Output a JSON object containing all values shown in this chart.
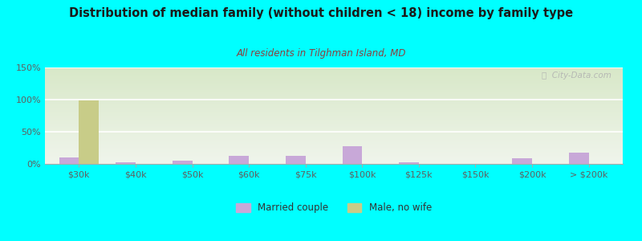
{
  "title": "Distribution of median family (without children < 18) income by family type",
  "subtitle": "All residents in Tilghman Island, MD",
  "categories": [
    "$30k",
    "$40k",
    "$50k",
    "$60k",
    "$75k",
    "$100k",
    "$125k",
    "$150k",
    "$200k",
    "> $200k"
  ],
  "married_couple": [
    10,
    3,
    5,
    12,
    13,
    27,
    2,
    0,
    9,
    17
  ],
  "male_no_wife": [
    99,
    0,
    0,
    0,
    0,
    0,
    0,
    0,
    0,
    0
  ],
  "married_color": "#c8a8d8",
  "male_color": "#c8cc88",
  "bg_color": "#00ffff",
  "plot_bg_top": "#d8e8c8",
  "plot_bg_bottom": "#f0f5ec",
  "title_color": "#1a1a1a",
  "subtitle_color": "#8b4040",
  "watermark": "ⓘ  City-Data.com",
  "ylim": [
    0,
    150
  ],
  "yticks": [
    0,
    50,
    100,
    150
  ],
  "ytick_labels": [
    "0%",
    "50%",
    "100%",
    "150%"
  ],
  "bar_width": 0.35,
  "tick_color": "#606060",
  "grid_color": "#d8e8c8"
}
